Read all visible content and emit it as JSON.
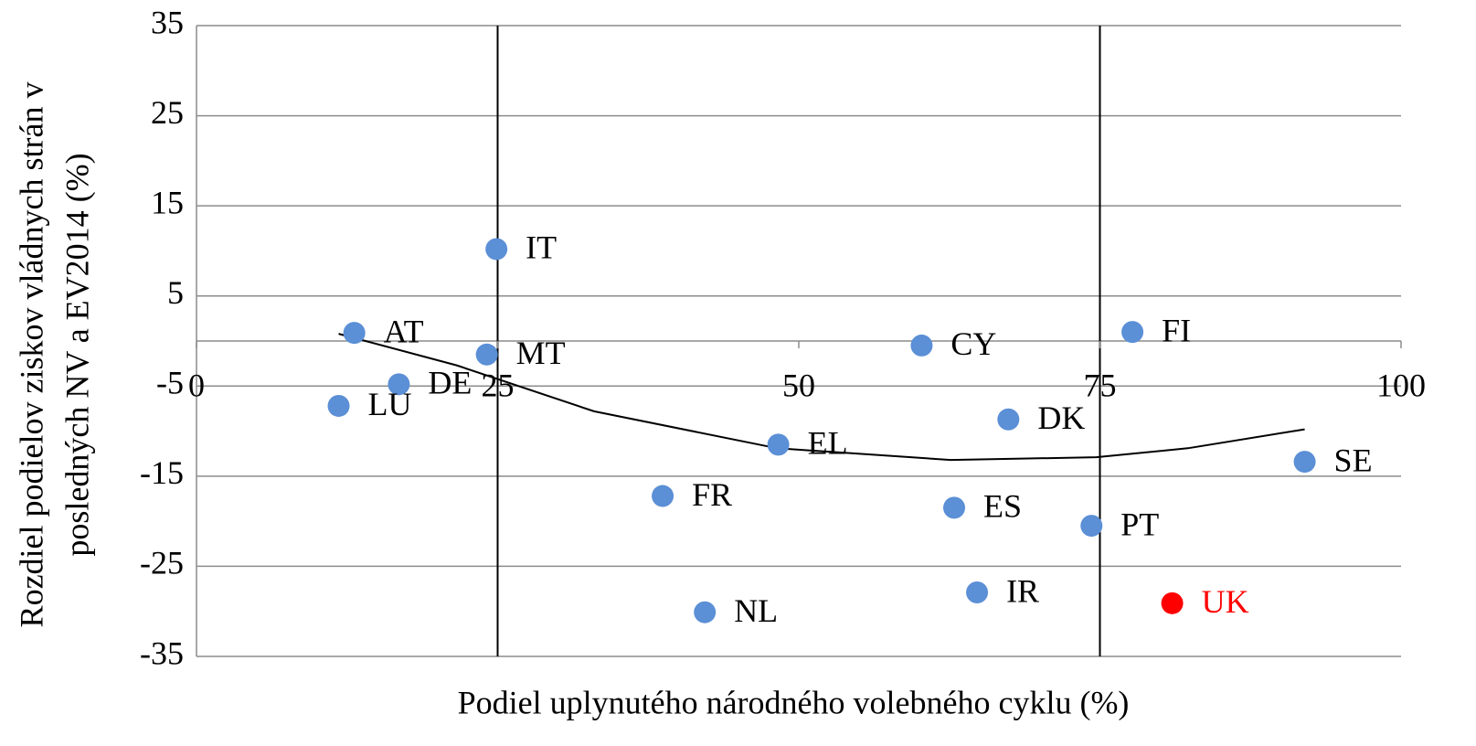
{
  "chart_data": {
    "type": "scatter",
    "x_label": "Podiel uplynutého národného volebného cyklu (%)",
    "y_label": [
      "Rozdiel podielov ziskov vládnych strán v",
      "posledných NV a EV2014 (%)"
    ],
    "point_labels": [
      "IT",
      "AT",
      "MT",
      "DE",
      "LU",
      "CY",
      "FI",
      "DK",
      "EL",
      "SE",
      "FR",
      "ES",
      "PT",
      "IR",
      "NL",
      "UK"
    ],
    "x": [
      24.9,
      13.1,
      24.1,
      16.8,
      11.8,
      60.2,
      77.7,
      67.4,
      48.3,
      92.0,
      38.7,
      62.9,
      74.3,
      64.8,
      42.2,
      81.0
    ],
    "y": [
      10.2,
      0.9,
      -1.5,
      -4.8,
      -7.2,
      -0.5,
      1.0,
      -8.7,
      -11.5,
      -13.4,
      -17.2,
      -18.5,
      -20.5,
      -27.9,
      -30.1,
      -29.1
    ],
    "point_colors": [
      "#5b8fd6",
      "#5b8fd6",
      "#5b8fd6",
      "#5b8fd6",
      "#5b8fd6",
      "#5b8fd6",
      "#5b8fd6",
      "#5b8fd6",
      "#5b8fd6",
      "#5b8fd6",
      "#5b8fd6",
      "#5b8fd6",
      "#5b8fd6",
      "#5b8fd6",
      "#5b8fd6",
      "#ff0000"
    ],
    "label_colors": [
      "#000000",
      "#000000",
      "#000000",
      "#000000",
      "#000000",
      "#000000",
      "#000000",
      "#000000",
      "#000000",
      "#000000",
      "#000000",
      "#000000",
      "#000000",
      "#000000",
      "#000000",
      "#ff0000"
    ],
    "trendline": {
      "x": [
        11.8,
        21.6,
        33,
        48.2,
        62.6,
        74.7,
        82.3,
        92
      ],
      "y": [
        0.8,
        -2.7,
        -7.8,
        -11.9,
        -13.2,
        -12.9,
        -11.9,
        -9.8
      ],
      "color": "#000000"
    },
    "xlim": [
      0,
      100
    ],
    "xticks": [
      0,
      25,
      50,
      75,
      100
    ],
    "ylim": [
      -35,
      35
    ],
    "yticks": [
      -35,
      -25,
      -15,
      -5,
      5,
      15,
      25,
      35
    ],
    "x_grid_at": [
      25,
      75
    ],
    "grid": true
  }
}
